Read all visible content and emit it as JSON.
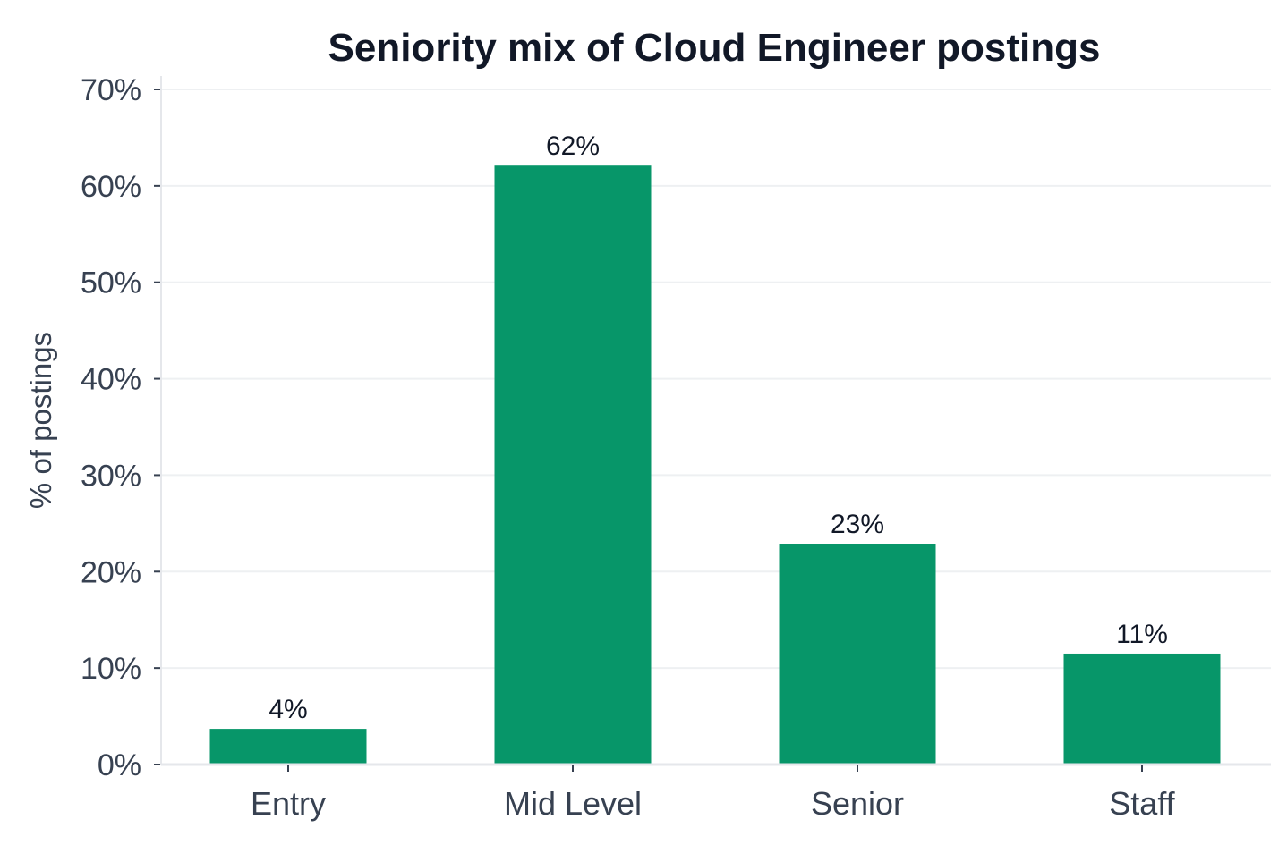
{
  "chart_data": {
    "type": "bar",
    "title": "Seniority mix of Cloud Engineer postings",
    "xlabel": "",
    "ylabel": "% of postings",
    "categories": [
      "Entry",
      "Mid Level",
      "Senior",
      "Staff"
    ],
    "values": [
      3.7,
      62.1,
      22.9,
      11.5
    ],
    "data_labels": [
      "4%",
      "62%",
      "23%",
      "11%"
    ],
    "ylim": [
      0,
      70
    ],
    "yticks": [
      0,
      10,
      20,
      30,
      40,
      50,
      60,
      70
    ],
    "ytick_labels": [
      "0%",
      "10%",
      "20%",
      "30%",
      "40%",
      "50%",
      "60%",
      "70%"
    ],
    "grid": true,
    "legend": "none",
    "bar_color": "#079669",
    "grid_color": "#eef0f2",
    "axis_color": "#e5e7eb"
  }
}
